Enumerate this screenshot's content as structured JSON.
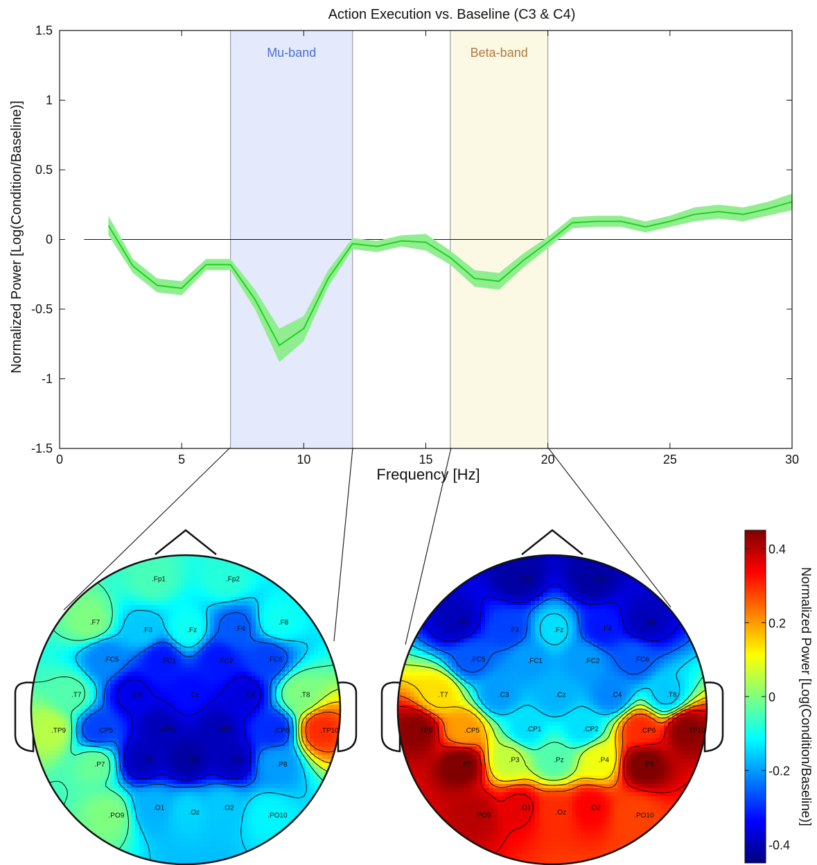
{
  "chart_data": {
    "type": "line",
    "title": "Action Execution vs. Baseline (C3 & C4)",
    "xlabel": "Frequency [Hz]",
    "ylabel": "Normalized Power [Log(Condition/Baseline)]",
    "xlim": [
      0,
      30
    ],
    "ylim": [
      -1.5,
      1.5
    ],
    "xticks": [
      "0",
      "5",
      "10",
      "15",
      "20",
      "25",
      "30"
    ],
    "yticks": [
      "1.5",
      "1",
      "0.5",
      "0",
      "-0.5",
      "-1",
      "-1.5"
    ],
    "grid": false,
    "series": [
      {
        "color": "#1fd11f",
        "band_color": "#90ee90",
        "x": [
          2,
          3,
          4,
          5,
          6,
          7,
          8,
          9,
          10,
          11,
          12,
          13,
          14,
          15,
          16,
          17,
          18,
          19,
          20,
          21,
          22,
          23,
          24,
          25,
          26,
          27,
          28,
          29,
          30
        ],
        "y": [
          0.1,
          -0.19,
          -0.33,
          -0.35,
          -0.18,
          -0.18,
          -0.43,
          -0.76,
          -0.64,
          -0.28,
          -0.03,
          -0.05,
          -0.01,
          -0.02,
          -0.13,
          -0.28,
          -0.3,
          -0.15,
          -0.02,
          0.12,
          0.13,
          0.13,
          0.09,
          0.13,
          0.18,
          0.2,
          0.18,
          0.22,
          0.27
        ],
        "err": [
          0.07,
          0.05,
          0.05,
          0.05,
          0.04,
          0.04,
          0.07,
          0.12,
          0.09,
          0.06,
          0.04,
          0.04,
          0.04,
          0.06,
          0.05,
          0.06,
          0.06,
          0.05,
          0.04,
          0.04,
          0.04,
          0.04,
          0.04,
          0.04,
          0.05,
          0.05,
          0.05,
          0.05,
          0.06
        ]
      }
    ],
    "bands": [
      {
        "label": "Mu-band",
        "from": 7,
        "to": 12,
        "fill": "#e4e9fb",
        "text_color": "#4a6fd8"
      },
      {
        "label": "Beta-band",
        "from": 16,
        "to": 20,
        "fill": "#fbf8e4",
        "text_color": "#b07a3c"
      }
    ],
    "topomaps": [
      {
        "band": "Mu-band",
        "electrodes": [
          "Fp1",
          "Fp2",
          "F7",
          "F3",
          "Fz",
          "F4",
          "F8",
          "FC5",
          "FC1",
          "FC2",
          "FC6",
          "T7",
          "C3",
          "Cz",
          "C4",
          "T8",
          "TP9",
          "CP5",
          "CP1",
          "CP2",
          "CP6",
          "TP10",
          "P7",
          "P3",
          "Pz",
          "P4",
          "P8",
          "PO9",
          "O1",
          "Oz",
          "O2",
          "PO10"
        ],
        "values": [
          -0.05,
          -0.08,
          0.0,
          -0.16,
          -0.1,
          -0.26,
          -0.1,
          -0.22,
          -0.32,
          -0.32,
          -0.28,
          -0.04,
          -0.36,
          -0.33,
          -0.37,
          0.0,
          0.05,
          -0.28,
          -0.4,
          -0.4,
          -0.3,
          0.3,
          -0.02,
          -0.4,
          -0.42,
          -0.4,
          -0.2,
          0.0,
          -0.18,
          -0.15,
          -0.16,
          -0.12
        ]
      },
      {
        "band": "Beta-band",
        "electrodes": [
          "Fp1",
          "Fp2",
          "F7",
          "F3",
          "Fz",
          "F4",
          "F8",
          "FC5",
          "FC1",
          "FC2",
          "FC6",
          "T7",
          "C3",
          "Cz",
          "C4",
          "T8",
          "TP9",
          "CP5",
          "CP1",
          "CP2",
          "CP6",
          "TP10",
          "P7",
          "P3",
          "Pz",
          "P4",
          "P8",
          "PO9",
          "O1",
          "Oz",
          "O2",
          "PO10"
        ],
        "values": [
          -0.42,
          -0.42,
          -0.4,
          -0.28,
          -0.14,
          -0.32,
          -0.4,
          -0.26,
          -0.2,
          -0.2,
          -0.26,
          0.14,
          -0.2,
          -0.18,
          -0.22,
          -0.16,
          0.44,
          0.2,
          -0.14,
          -0.14,
          0.3,
          0.44,
          0.46,
          0.06,
          -0.04,
          0.1,
          0.46,
          0.4,
          0.36,
          0.3,
          0.34,
          0.28
        ]
      }
    ],
    "colorbar": {
      "label": "Normalized Power [Log(Condition/Baseline)]",
      "range": [
        -0.45,
        0.45
      ],
      "ticks": [
        "0.4",
        "0.2",
        "0",
        "-0.2",
        "-0.4"
      ],
      "colormap": "jet"
    }
  }
}
